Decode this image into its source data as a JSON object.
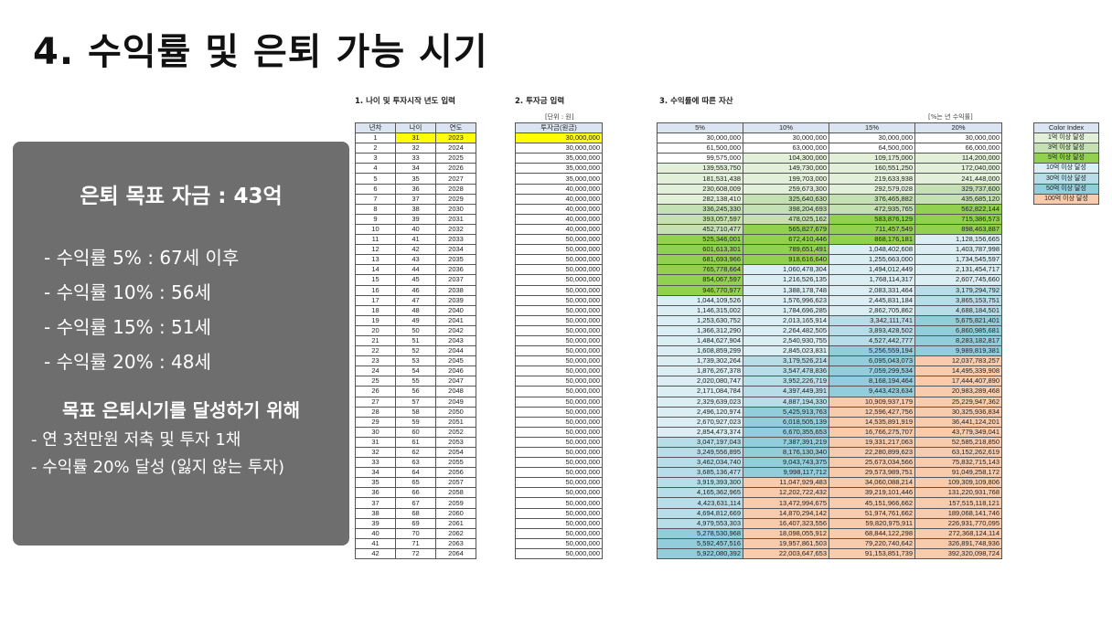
{
  "title": "4. 수익률 및 은퇴 가능 시기",
  "panel": {
    "goal": "은퇴 목표 자금 : 43억",
    "rates": [
      "- 수익률   5% : 67세 이후",
      "- 수익률 10% : 56세",
      "- 수익률 15% : 51세",
      "- 수익률 20% : 48세"
    ],
    "plan_heading": "목표 은퇴시기를 달성하기 위해",
    "plan_items": [
      "- 연 3천만원 저축 및 투자 1채",
      "- 수익률 20% 달성 (잃지 않는 투자)"
    ]
  },
  "section1": {
    "title": "1. 나이 및 투자시작 년도 입력",
    "headers": [
      "년차",
      "나이",
      "연도"
    ]
  },
  "section2": {
    "title": "2. 투자금 입력",
    "unit": "[단위 : 원]",
    "header": "투자금(원금)"
  },
  "section3": {
    "title": "3. 수익률에 따른 자산",
    "unit": "[%는 년 수익률]",
    "headers": [
      "5%",
      "10%",
      "15%",
      "20%"
    ]
  },
  "legend": {
    "title": "Color Index",
    "items": [
      {
        "label": "1억 이상 달성",
        "color": "#e2f0d9"
      },
      {
        "label": "3억 이상 달성",
        "color": "#c5e0b3"
      },
      {
        "label": "5억 이상 달성",
        "color": "#92d050"
      },
      {
        "label": "10억 이상 달성",
        "color": "#daeef3"
      },
      {
        "label": "30억 이상 달성",
        "color": "#b7dee8"
      },
      {
        "label": "50억 이상 달성",
        "color": "#92cddc"
      },
      {
        "label": "100억 이상 달성",
        "color": "#f8cbad"
      }
    ]
  },
  "rows": [
    [
      "1",
      "31",
      "2023",
      "30,000,000",
      "30,000,000",
      "30,000,000",
      "30,000,000",
      "30,000,000"
    ],
    [
      "2",
      "32",
      "2024",
      "30,000,000",
      "61,500,000",
      "63,000,000",
      "64,500,000",
      "66,000,000"
    ],
    [
      "3",
      "33",
      "2025",
      "35,000,000",
      "99,575,000",
      "104,300,000",
      "109,175,000",
      "114,200,000"
    ],
    [
      "4",
      "34",
      "2026",
      "35,000,000",
      "139,553,750",
      "149,730,000",
      "160,551,250",
      "172,040,000"
    ],
    [
      "5",
      "35",
      "2027",
      "35,000,000",
      "181,531,438",
      "199,703,000",
      "219,633,938",
      "241,448,000"
    ],
    [
      "6",
      "36",
      "2028",
      "40,000,000",
      "230,608,009",
      "259,673,300",
      "292,579,028",
      "329,737,600"
    ],
    [
      "7",
      "37",
      "2029",
      "40,000,000",
      "282,138,410",
      "325,640,630",
      "376,465,882",
      "435,685,120"
    ],
    [
      "8",
      "38",
      "2030",
      "40,000,000",
      "336,245,330",
      "398,204,693",
      "472,935,765",
      "562,822,144"
    ],
    [
      "9",
      "39",
      "2031",
      "40,000,000",
      "393,057,597",
      "478,025,162",
      "583,876,129",
      "715,386,573"
    ],
    [
      "10",
      "40",
      "2032",
      "40,000,000",
      "452,710,477",
      "565,827,679",
      "711,457,549",
      "898,463,887"
    ],
    [
      "11",
      "41",
      "2033",
      "50,000,000",
      "525,346,001",
      "672,410,446",
      "868,176,181",
      "1,128,156,665"
    ],
    [
      "12",
      "42",
      "2034",
      "50,000,000",
      "601,613,301",
      "789,651,491",
      "1,048,402,608",
      "1,403,787,998"
    ],
    [
      "13",
      "43",
      "2035",
      "50,000,000",
      "681,693,966",
      "918,616,640",
      "1,255,663,000",
      "1,734,545,597"
    ],
    [
      "14",
      "44",
      "2036",
      "50,000,000",
      "765,778,664",
      "1,060,478,304",
      "1,494,012,449",
      "2,131,454,717"
    ],
    [
      "15",
      "45",
      "2037",
      "50,000,000",
      "854,067,597",
      "1,216,526,135",
      "1,768,114,317",
      "2,607,745,660"
    ],
    [
      "16",
      "46",
      "2038",
      "50,000,000",
      "946,770,977",
      "1,388,178,748",
      "2,083,331,464",
      "3,179,294,792"
    ],
    [
      "17",
      "47",
      "2039",
      "50,000,000",
      "1,044,109,526",
      "1,576,996,623",
      "2,445,831,184",
      "3,865,153,751"
    ],
    [
      "18",
      "48",
      "2040",
      "50,000,000",
      "1,146,315,002",
      "1,784,696,285",
      "2,862,705,862",
      "4,688,184,501"
    ],
    [
      "19",
      "49",
      "2041",
      "50,000,000",
      "1,253,630,752",
      "2,013,165,914",
      "3,342,111,741",
      "5,675,821,401"
    ],
    [
      "20",
      "50",
      "2042",
      "50,000,000",
      "1,366,312,290",
      "2,264,482,505",
      "3,893,428,502",
      "6,860,985,681"
    ],
    [
      "21",
      "51",
      "2043",
      "50,000,000",
      "1,484,627,904",
      "2,540,930,755",
      "4,527,442,777",
      "8,283,182,817"
    ],
    [
      "22",
      "52",
      "2044",
      "50,000,000",
      "1,608,859,299",
      "2,845,023,831",
      "5,256,559,194",
      "9,989,819,381"
    ],
    [
      "23",
      "53",
      "2045",
      "50,000,000",
      "1,739,302,264",
      "3,179,526,214",
      "6,095,043,073",
      "12,037,783,257"
    ],
    [
      "24",
      "54",
      "2046",
      "50,000,000",
      "1,876,267,378",
      "3,547,478,836",
      "7,059,299,534",
      "14,495,339,908"
    ],
    [
      "25",
      "55",
      "2047",
      "50,000,000",
      "2,020,080,747",
      "3,952,226,719",
      "8,168,194,464",
      "17,444,407,890"
    ],
    [
      "26",
      "56",
      "2048",
      "50,000,000",
      "2,171,084,784",
      "4,397,449,391",
      "9,443,423,634",
      "20,983,289,468"
    ],
    [
      "27",
      "57",
      "2049",
      "50,000,000",
      "2,329,639,023",
      "4,887,194,330",
      "10,909,937,179",
      "25,229,947,362"
    ],
    [
      "28",
      "58",
      "2050",
      "50,000,000",
      "2,496,120,974",
      "5,425,913,763",
      "12,596,427,756",
      "30,325,936,834"
    ],
    [
      "29",
      "59",
      "2051",
      "50,000,000",
      "2,670,927,023",
      "6,018,505,139",
      "14,535,891,919",
      "36,441,124,201"
    ],
    [
      "30",
      "60",
      "2052",
      "50,000,000",
      "2,854,473,374",
      "6,670,355,653",
      "16,766,275,707",
      "43,779,349,041"
    ],
    [
      "31",
      "61",
      "2053",
      "50,000,000",
      "3,047,197,043",
      "7,387,391,219",
      "19,331,217,063",
      "52,585,218,850"
    ],
    [
      "32",
      "62",
      "2054",
      "50,000,000",
      "3,249,556,895",
      "8,176,130,340",
      "22,280,899,623",
      "63,152,262,619"
    ],
    [
      "33",
      "63",
      "2055",
      "50,000,000",
      "3,462,034,740",
      "9,043,743,375",
      "25,673,034,566",
      "75,832,715,143"
    ],
    [
      "34",
      "64",
      "2056",
      "50,000,000",
      "3,685,136,477",
      "9,998,117,712",
      "29,573,989,751",
      "91,049,258,172"
    ],
    [
      "35",
      "65",
      "2057",
      "50,000,000",
      "3,919,393,300",
      "11,047,929,483",
      "34,060,088,214",
      "109,309,109,806"
    ],
    [
      "36",
      "66",
      "2058",
      "50,000,000",
      "4,165,362,965",
      "12,202,722,432",
      "39,219,101,446",
      "131,220,931,768"
    ],
    [
      "37",
      "67",
      "2059",
      "50,000,000",
      "4,423,631,114",
      "13,472,994,675",
      "45,151,966,662",
      "157,515,118,121"
    ],
    [
      "38",
      "68",
      "2060",
      "50,000,000",
      "4,694,812,669",
      "14,870,294,142",
      "51,974,761,662",
      "189,068,141,746"
    ],
    [
      "39",
      "69",
      "2061",
      "50,000,000",
      "4,979,553,303",
      "16,407,323,556",
      "59,820,975,911",
      "226,931,770,095"
    ],
    [
      "40",
      "70",
      "2062",
      "50,000,000",
      "5,278,530,968",
      "18,098,055,912",
      "68,844,122,298",
      "272,368,124,114"
    ],
    [
      "41",
      "71",
      "2063",
      "50,000,000",
      "5,592,457,516",
      "19,957,861,503",
      "79,220,740,642",
      "326,891,748,936"
    ],
    [
      "42",
      "72",
      "2064",
      "50,000,000",
      "5,922,080,392",
      "22,003,647,653",
      "91,153,851,739",
      "392,320,098,724"
    ]
  ]
}
